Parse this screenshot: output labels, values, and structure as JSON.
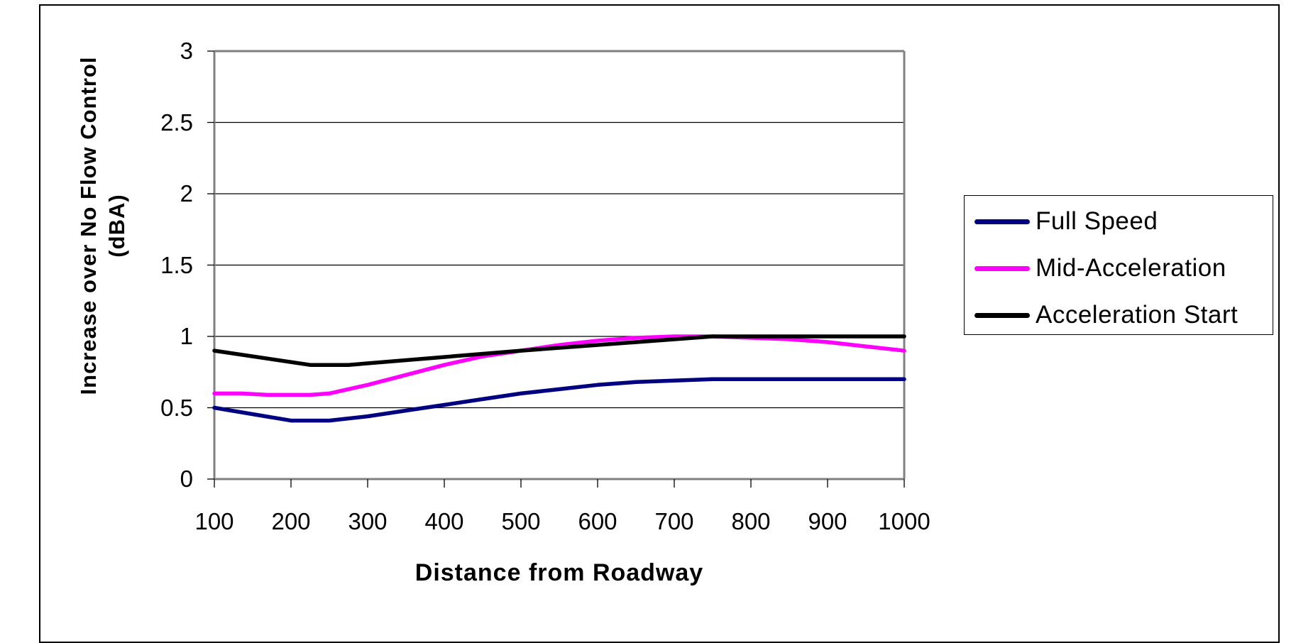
{
  "chart_data": {
    "type": "line",
    "title": "",
    "xlabel": "Distance from Roadway",
    "ylabel": "Increase over No Flow Control (dBA)",
    "ylabel_lines": [
      "Increase over No Flow Control",
      "(dBA)"
    ],
    "xlim": [
      100,
      1000
    ],
    "ylim": [
      0,
      3
    ],
    "x_ticks": [
      100,
      200,
      300,
      400,
      500,
      600,
      700,
      800,
      900,
      1000
    ],
    "y_ticks": [
      0,
      0.5,
      1,
      1.5,
      2,
      2.5,
      3
    ],
    "y_tick_labels": [
      "0",
      "0.5",
      "1",
      "1.5",
      "2",
      "2.5",
      "3"
    ],
    "grid": "horizontal major gridlines",
    "legend_position": "right",
    "series": [
      {
        "name": "Full Speed",
        "color": "#000080",
        "x": [
          100,
          200,
          250,
          300,
          350,
          400,
          450,
          500,
          550,
          600,
          650,
          700,
          750,
          800,
          850,
          900,
          950,
          1000
        ],
        "values": [
          0.5,
          0.41,
          0.41,
          0.44,
          0.48,
          0.52,
          0.56,
          0.6,
          0.63,
          0.66,
          0.68,
          0.69,
          0.7,
          0.7,
          0.7,
          0.7,
          0.7,
          0.7
        ]
      },
      {
        "name": "Mid-Acceleration",
        "color": "#FF00FF",
        "x": [
          100,
          135,
          170,
          225,
          250,
          300,
          350,
          400,
          450,
          500,
          550,
          600,
          650,
          700,
          750,
          800,
          850,
          900,
          950,
          1000
        ],
        "values": [
          0.6,
          0.6,
          0.59,
          0.59,
          0.6,
          0.66,
          0.73,
          0.8,
          0.86,
          0.9,
          0.94,
          0.97,
          0.99,
          1.0,
          1.0,
          0.99,
          0.98,
          0.96,
          0.93,
          0.9
        ]
      },
      {
        "name": "Acceleration Start",
        "color": "#000000",
        "x": [
          100,
          225,
          275,
          500,
          750,
          1000
        ],
        "values": [
          0.9,
          0.8,
          0.8,
          0.9,
          1.0,
          1.0
        ]
      }
    ]
  },
  "legend": {
    "items": [
      {
        "label": "Full Speed",
        "color": "#000080"
      },
      {
        "label": "Mid-Acceleration",
        "color": "#FF00FF"
      },
      {
        "label": "Acceleration Start",
        "color": "#000000"
      }
    ]
  },
  "axes": {
    "x_title": "Distance from Roadway",
    "y_title_line1": "Increase over No Flow Control",
    "y_title_line2": "(dBA)"
  }
}
